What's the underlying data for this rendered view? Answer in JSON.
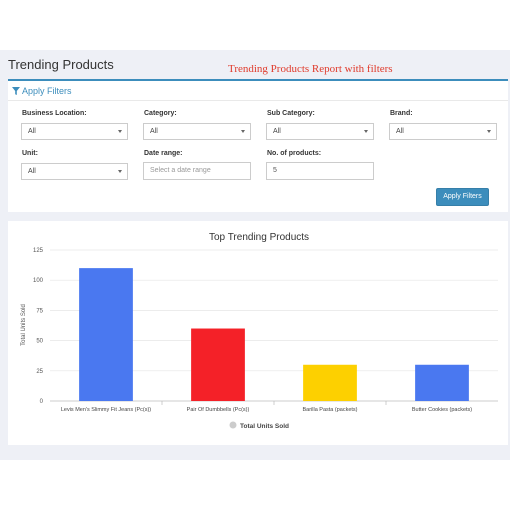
{
  "page": {
    "title": "Trending Products",
    "caption": "Trending Products Report with filters"
  },
  "filters": {
    "header": "Apply Filters",
    "business_location": {
      "label": "Business Location:",
      "value": "All"
    },
    "category": {
      "label": "Category:",
      "value": "All"
    },
    "sub_category": {
      "label": "Sub Category:",
      "value": "All"
    },
    "brand": {
      "label": "Brand:",
      "value": "All"
    },
    "unit": {
      "label": "Unit:",
      "value": "All"
    },
    "date_range": {
      "label": "Date range:",
      "placeholder": "Select a date range"
    },
    "num_products": {
      "label": "No. of products:",
      "value": "5"
    },
    "apply_label": "Apply Filters"
  },
  "colors": {
    "accent": "#3c8dbc",
    "caption": "#e03b2c"
  },
  "chart_data": {
    "type": "bar",
    "title": "Top Trending Products",
    "ylabel": "Total Units Sold",
    "xlabel": "",
    "categories": [
      "Levis Men's Slimmy Fit Jeans (Pc(s))",
      "Pair Of Dumbbells (Pc(s))",
      "Barilla Pasta (packets)",
      "Butter Cookies (packets)"
    ],
    "series": [
      {
        "name": "Total Units Sold",
        "values": [
          110,
          60,
          30,
          30
        ]
      }
    ],
    "bar_colors": [
      "#4a78f0",
      "#f42128",
      "#fdd000",
      "#4a78f0"
    ],
    "ylim": [
      0,
      125
    ],
    "yticks": [
      0,
      25,
      50,
      75,
      100,
      125
    ],
    "grid": true,
    "legend": "bottom"
  }
}
